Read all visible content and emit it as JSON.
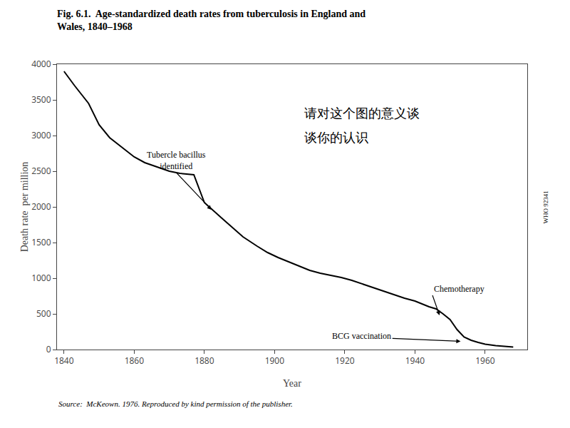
{
  "chart_data": {
    "type": "line",
    "title": "Fig. 6.1.  Age-standardized death rates from tuberculosis in England and\nWales, 1840–1968",
    "xlabel": "Year",
    "ylabel": "Death rate  per million",
    "x": [
      1840,
      1843,
      1847,
      1850,
      1853,
      1857,
      1860,
      1863,
      1867,
      1870,
      1873,
      1877,
      1880,
      1882,
      1885,
      1888,
      1891,
      1895,
      1898,
      1901,
      1904,
      1907,
      1910,
      1913,
      1916,
      1919,
      1922,
      1925,
      1928,
      1931,
      1934,
      1937,
      1940,
      1942,
      1944,
      1946,
      1948,
      1950,
      1952,
      1954,
      1956,
      1958,
      1960,
      1963,
      1966,
      1968
    ],
    "values": [
      3900,
      3700,
      3450,
      3150,
      2970,
      2820,
      2700,
      2620,
      2550,
      2500,
      2470,
      2450,
      2060,
      1975,
      1840,
      1710,
      1580,
      1450,
      1360,
      1290,
      1230,
      1170,
      1110,
      1070,
      1040,
      1010,
      970,
      920,
      870,
      820,
      770,
      720,
      680,
      640,
      600,
      570,
      500,
      420,
      280,
      175,
      130,
      100,
      75,
      55,
      45,
      35
    ],
    "color": "#000000",
    "xlim": [
      1838,
      1972
    ],
    "ylim": [
      0,
      4000
    ],
    "xticks": [
      1840,
      1860,
      1880,
      1900,
      1920,
      1940,
      1960
    ],
    "yticks": [
      0,
      500,
      1000,
      1500,
      2000,
      2500,
      3000,
      3500,
      4000
    ],
    "grid": false,
    "annotations": [
      {
        "text": "Tubercle bacillus\nidentified",
        "x": 1882,
        "y": 1960,
        "text_x": 1872,
        "text_y": 2480
      },
      {
        "text": "BCG vaccination",
        "x": 1953,
        "y": 115,
        "text_x": 1916,
        "text_y": 195
      },
      {
        "text": "Chemotherapy",
        "x": 1947,
        "y": 480,
        "text_x": 1945,
        "text_y": 760
      }
    ],
    "notes": [
      {
        "text": "请对这个图的意义谈",
        "x": 1908,
        "y": 3320
      },
      {
        "text": "谈你的认识",
        "x": 1908,
        "y": 2980
      }
    ],
    "source": "Source:  McKeown. 1976. Reproduced by kind permission of the publisher.",
    "credit": "WHO 92341"
  }
}
